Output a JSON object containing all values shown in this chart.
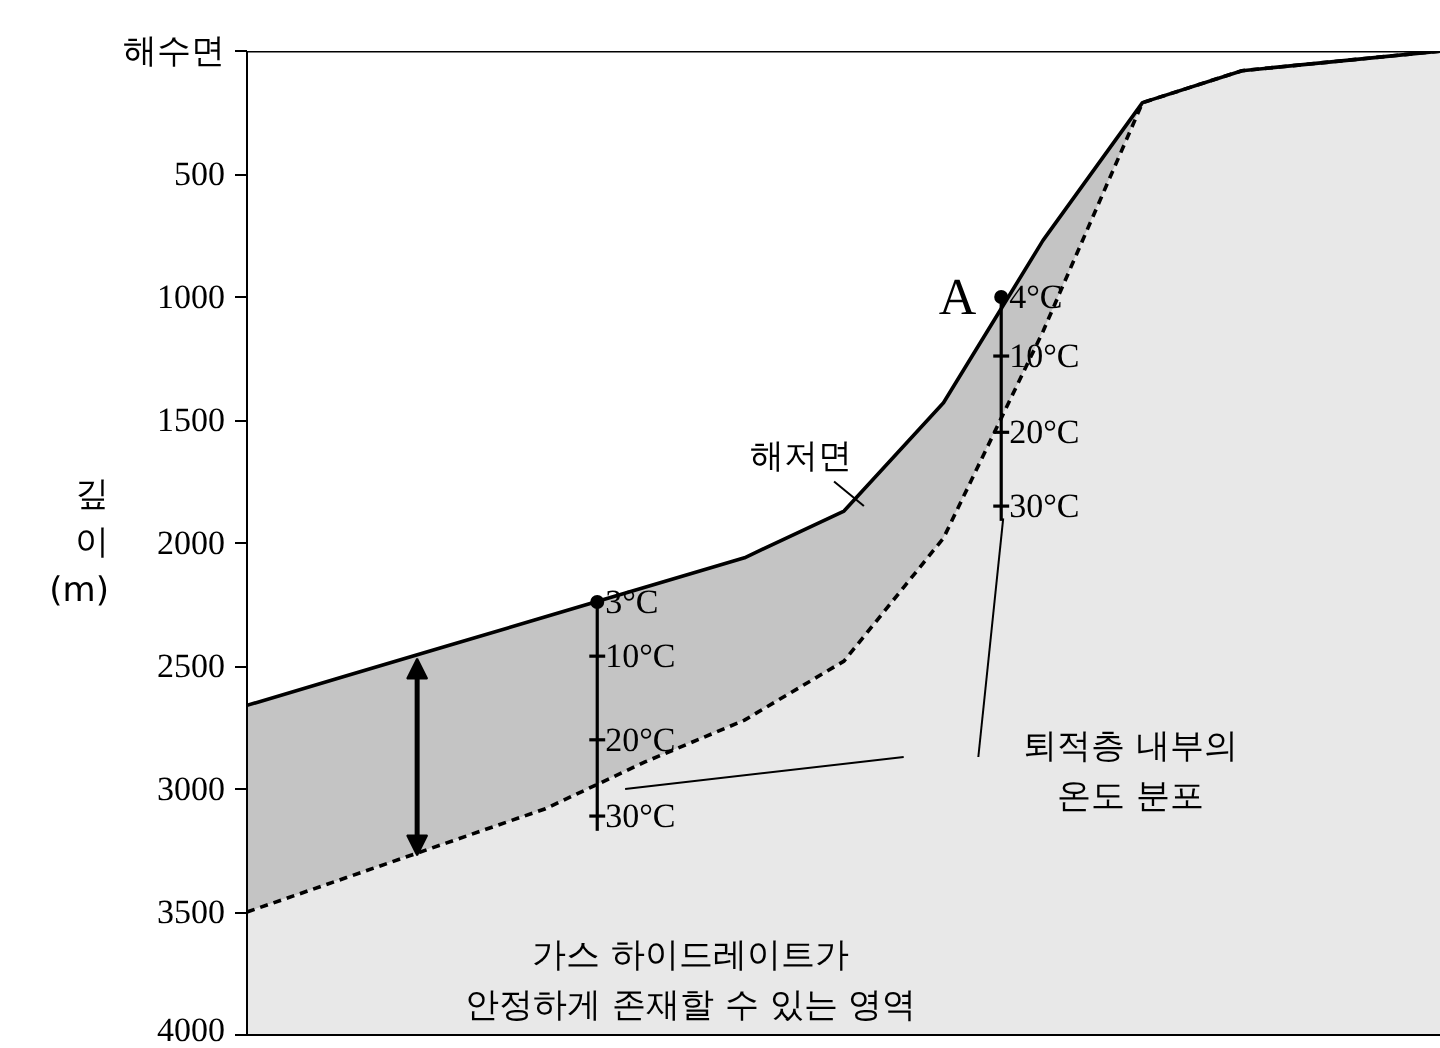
{
  "chart_data": {
    "type": "area",
    "stacked": true,
    "ylabel": "깊이 (m)",
    "categories": [
      null,
      null,
      null,
      null,
      null,
      null,
      null,
      null,
      null,
      null,
      null,
      null,
      null
    ],
    "ylim": [
      4000,
      0
    ],
    "yticks": [
      {
        "value": 0,
        "label": "해수면"
      },
      500,
      1000,
      1500,
      2000,
      2500,
      3000,
      3500,
      4000
    ],
    "grid": false,
    "series": [
      {
        "color": "#ffffff",
        "line_style": "solid",
        "values": [
          2660,
          2540,
          2420,
          2300,
          2180,
          2060,
          1870,
          1430,
          770,
          210,
          80,
          40,
          0
        ]
      },
      {
        "color": "#c4c4c4",
        "line_style": "dashed",
        "values": [
          840,
          820,
          800,
          780,
          710,
          660,
          610,
          550,
          370,
          0,
          0,
          0,
          0
        ]
      },
      {
        "color": "#e8e8e8",
        "values": [
          500,
          640,
          780,
          920,
          1110,
          1280,
          1520,
          2020,
          2860,
          3790,
          3920,
          3960,
          4000
        ]
      }
    ],
    "ref_lines": [
      {
        "axis": "y",
        "value": 0
      }
    ],
    "annotations": [
      "A",
      "4°C",
      "10°C",
      "20°C",
      "30°C",
      "3°C",
      "10°C",
      "20°C",
      "30°C",
      "해저면",
      "퇴적층 내부의\n온도 분포",
      "가스 하이드레이트가\n안정하게 존재할 수 있는 영역"
    ]
  }
}
